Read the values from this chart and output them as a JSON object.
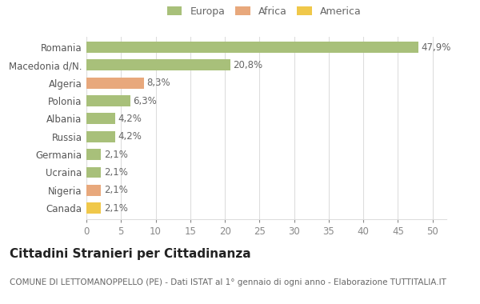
{
  "categories": [
    "Romania",
    "Macedonia d/N.",
    "Algeria",
    "Polonia",
    "Albania",
    "Russia",
    "Germania",
    "Ucraina",
    "Nigeria",
    "Canada"
  ],
  "values": [
    47.9,
    20.8,
    8.3,
    6.3,
    4.2,
    4.2,
    2.1,
    2.1,
    2.1,
    2.1
  ],
  "labels": [
    "47,9%",
    "20,8%",
    "8,3%",
    "6,3%",
    "4,2%",
    "4,2%",
    "2,1%",
    "2,1%",
    "2,1%",
    "2,1%"
  ],
  "colors": [
    "#a8c07a",
    "#a8c07a",
    "#e8a87c",
    "#a8c07a",
    "#a8c07a",
    "#a8c07a",
    "#a8c07a",
    "#a8c07a",
    "#e8a87c",
    "#f0c84a"
  ],
  "legend_labels": [
    "Europa",
    "Africa",
    "America"
  ],
  "legend_colors": [
    "#a8c07a",
    "#e8a87c",
    "#f0c84a"
  ],
  "title": "Cittadini Stranieri per Cittadinanza",
  "subtitle": "COMUNE DI LETTOMANOPPELLO (PE) - Dati ISTAT al 1° gennaio di ogni anno - Elaborazione TUTTITALIA.IT",
  "xlim": [
    0,
    52
  ],
  "xticks": [
    0,
    5,
    10,
    15,
    20,
    25,
    30,
    35,
    40,
    45,
    50
  ],
  "background_color": "#ffffff",
  "grid_color": "#dddddd",
  "bar_height": 0.62,
  "title_fontsize": 11,
  "subtitle_fontsize": 7.5,
  "tick_fontsize": 8.5,
  "label_fontsize": 8.5
}
